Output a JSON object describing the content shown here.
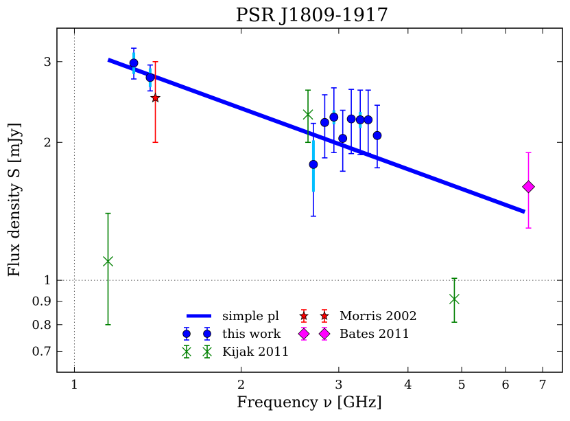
{
  "chart_data": {
    "type": "scatter",
    "title": "PSR J1809-1917",
    "xlabel": "Frequency ν [GHz]",
    "ylabel": "Flux density S [mJy]",
    "xscale": "log",
    "yscale": "log",
    "xlim": [
      0.93,
      7.6
    ],
    "ylim": [
      0.63,
      3.55
    ],
    "x_ticks": [
      {
        "value": 1,
        "label": "1"
      },
      {
        "value": 2,
        "label": "2"
      },
      {
        "value": 3,
        "label": "3"
      },
      {
        "value": 4,
        "label": "4"
      },
      {
        "value": 5,
        "label": "5"
      },
      {
        "value": 6,
        "label": "6"
      },
      {
        "value": 7,
        "label": "7"
      }
    ],
    "y_ticks": [
      {
        "value": 0.7,
        "label": "0.7"
      },
      {
        "value": 0.8,
        "label": "0.8"
      },
      {
        "value": 0.9,
        "label": "0.9"
      },
      {
        "value": 1,
        "label": "1"
      },
      {
        "value": 2,
        "label": "2"
      },
      {
        "value": 3,
        "label": "3"
      }
    ],
    "reference_lines": {
      "x": 1,
      "y": 1
    },
    "legend_position": "bottom-center",
    "series": [
      {
        "name": "simple pl",
        "kind": "line",
        "color": "#0000ff",
        "x": [
          1.15,
          6.5
        ],
        "y": [
          3.03,
          1.41
        ]
      },
      {
        "name": "this work",
        "kind": "points",
        "color": "#0000ff",
        "marker": "circle",
        "points": [
          {
            "x": 1.28,
            "y": 2.98,
            "lo": 2.75,
            "hi": 3.21,
            "slo": 2.82,
            "shi": 3.14
          },
          {
            "x": 1.37,
            "y": 2.77,
            "lo": 2.59,
            "hi": 2.95,
            "slo": 2.64,
            "shi": 2.9
          },
          {
            "x": 2.7,
            "y": 1.79,
            "lo": 1.38,
            "hi": 2.2,
            "slo": 1.56,
            "shi": 2.02
          },
          {
            "x": 2.83,
            "y": 2.21,
            "lo": 1.85,
            "hi": 2.54
          },
          {
            "x": 2.94,
            "y": 2.27,
            "lo": 1.9,
            "hi": 2.63,
            "slo": 2.19,
            "shi": 2.35
          },
          {
            "x": 3.05,
            "y": 2.04,
            "lo": 1.73,
            "hi": 2.35
          },
          {
            "x": 3.16,
            "y": 2.25,
            "lo": 1.89,
            "hi": 2.61
          },
          {
            "x": 3.28,
            "y": 2.24,
            "lo": 1.88,
            "hi": 2.6,
            "slo": 2.15,
            "shi": 2.33
          },
          {
            "x": 3.39,
            "y": 2.24,
            "lo": 1.89,
            "hi": 2.6
          },
          {
            "x": 3.52,
            "y": 2.07,
            "lo": 1.76,
            "hi": 2.41
          }
        ]
      },
      {
        "name": "Kijak 2011",
        "kind": "points",
        "color": "#008000",
        "marker": "x",
        "points": [
          {
            "x": 1.15,
            "y": 1.1,
            "lo": 0.8,
            "hi": 1.4
          },
          {
            "x": 2.64,
            "y": 2.3,
            "lo": 2.0,
            "hi": 2.6
          },
          {
            "x": 4.85,
            "y": 0.91,
            "lo": 0.81,
            "hi": 1.01
          }
        ]
      },
      {
        "name": "Morris 2002",
        "kind": "points",
        "color": "#ff0000",
        "marker": "star",
        "points": [
          {
            "x": 1.4,
            "y": 2.5,
            "lo": 2.0,
            "hi": 3.0
          }
        ]
      },
      {
        "name": "Bates 2011",
        "kind": "points",
        "color": "#ff00ff",
        "marker": "diamond",
        "points": [
          {
            "x": 6.6,
            "y": 1.6,
            "lo": 1.3,
            "hi": 1.9
          }
        ]
      }
    ]
  }
}
